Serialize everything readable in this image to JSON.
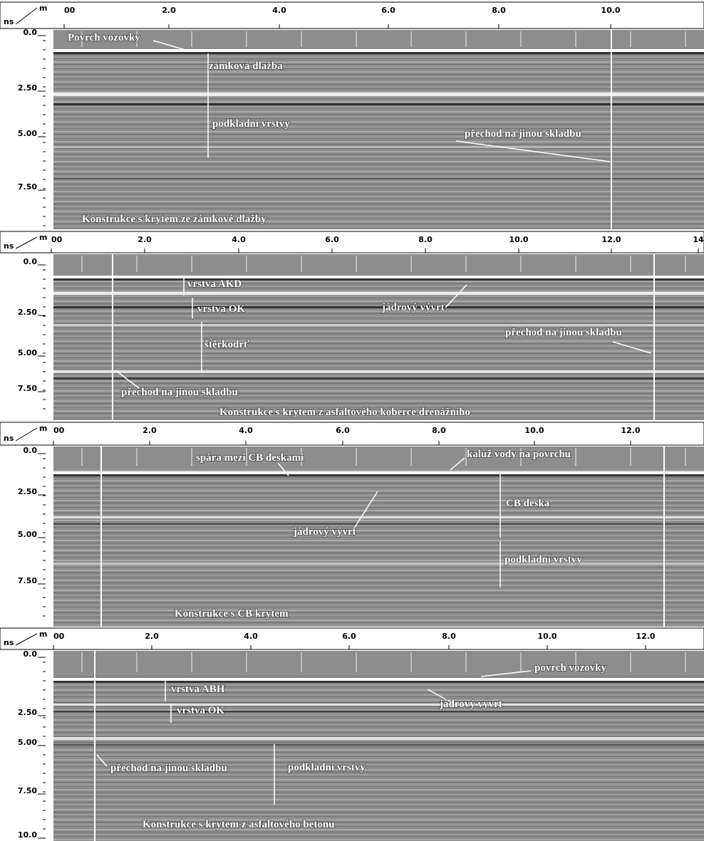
{
  "panels": [
    {
      "unit_x": "m",
      "unit_y": "ns",
      "x_ticks": [
        "00",
        "2.0",
        "4.0",
        "6.0",
        "8.0",
        "10.0"
      ],
      "y_ticks": [
        "0.0",
        "2.50",
        "5.00",
        "7.50"
      ],
      "annotations": [
        "Povrch vozovky",
        "zámková dlažba",
        "podkladní vrstvy",
        "přechod na jinou skladbu"
      ],
      "caption": "Konstrukce s krytem ze zámkové dlažby"
    },
    {
      "unit_x": "m",
      "unit_y": "ns",
      "x_ticks": [
        "00",
        "2.0",
        "4.0",
        "6.0",
        "8.0",
        "10.0",
        "12.0",
        "14"
      ],
      "y_ticks": [
        "0.0",
        "2.50",
        "5.00",
        "7.50"
      ],
      "annotations": [
        "vrstva AKD",
        "vrstva OK",
        "jádrový vývrt",
        "štěrkodrť",
        "přechod na jinou skladbu",
        "přechod na jinou skladbu"
      ],
      "caption": "Konstrukce s krytem z asfaltového koberce drenážního"
    },
    {
      "unit_x": "m",
      "unit_y": "ns",
      "x_ticks": [
        "00",
        "2.0",
        "4.0",
        "6.0",
        "8.0",
        "10.0",
        "12.0"
      ],
      "y_ticks": [
        "0.0",
        "2.50",
        "5.00",
        "7.50"
      ],
      "annotations": [
        "spára mezi CB deskami",
        "kaluž vody na povrchu",
        "CB deska",
        "jádrový vývrt",
        "podkladní vrstvy"
      ],
      "caption": "Konstrukce s CB krytem"
    },
    {
      "unit_x": "m",
      "unit_y": "ns",
      "x_ticks": [
        "00",
        "2.0",
        "4.0",
        "6.0",
        "8.0",
        "10.0",
        "12.0"
      ],
      "y_ticks": [
        "0.0",
        "2.50",
        "5.00",
        "7.50",
        "10.0"
      ],
      "annotations": [
        "povrch vozovky",
        "vrstva ABH",
        "jádrový vývrt",
        "vrstva OK",
        "přechod na jinou skladbu",
        "podkladní vrstvy"
      ],
      "caption": "Konstrukce s krytem z asfaltového betonu"
    }
  ]
}
